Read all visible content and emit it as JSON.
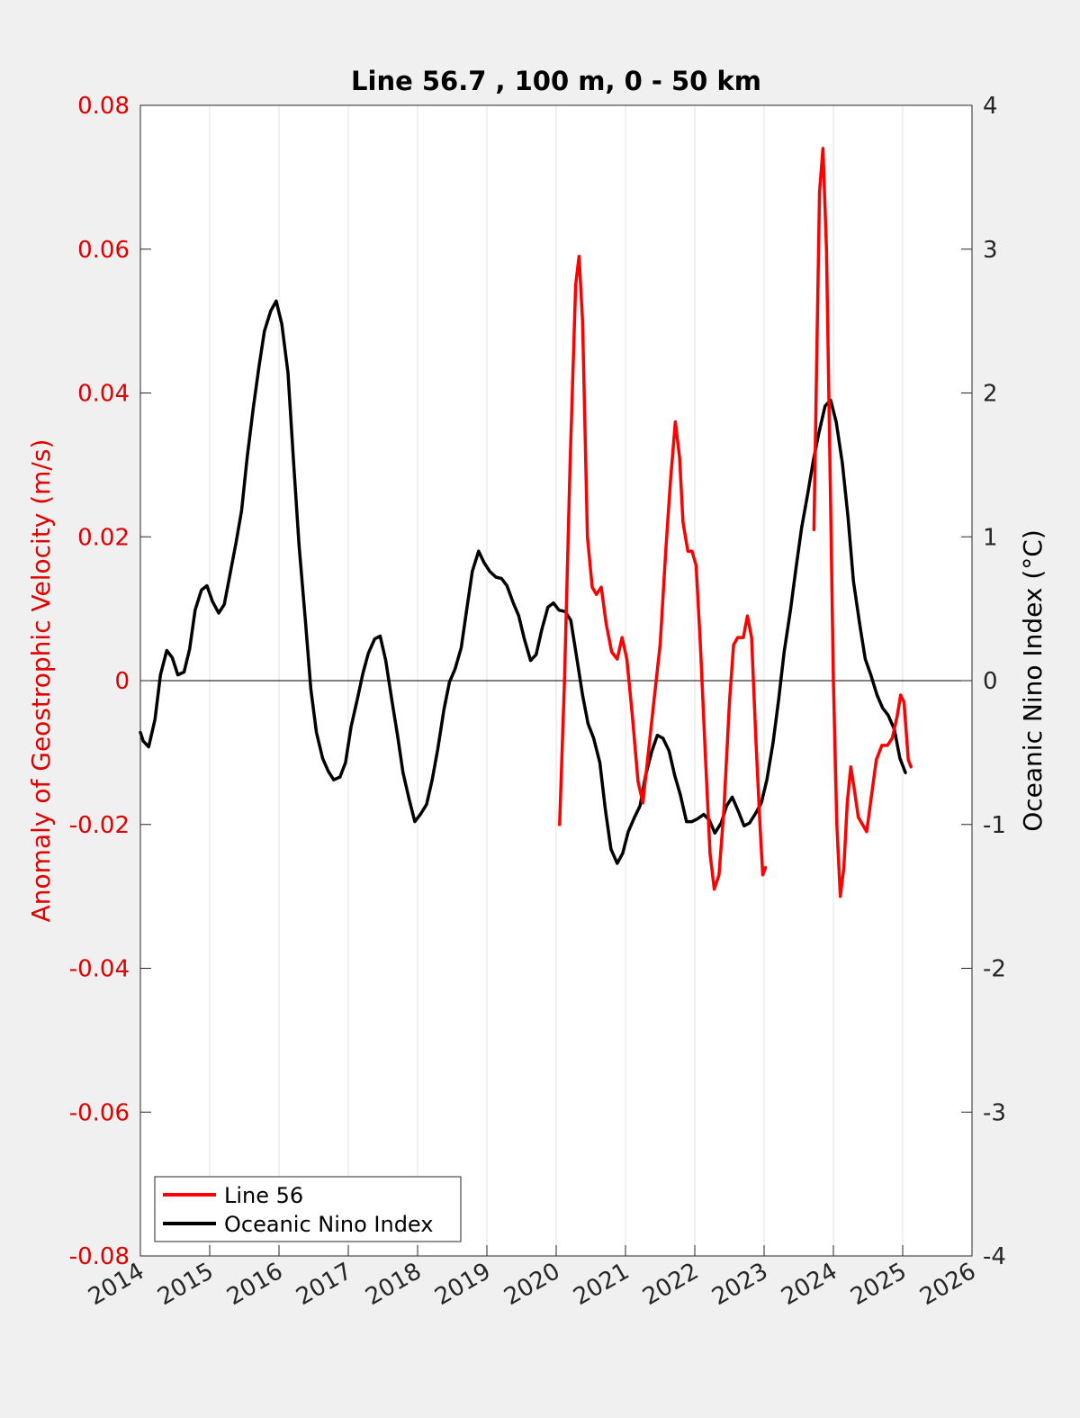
{
  "chart_data": {
    "type": "line",
    "title": "Line 56.7 , 100 m, 0 - 50 km",
    "xlabel": "",
    "ylabel_left": "Anomaly of Geostrophic Velocity (m/s)",
    "ylabel_right": "Oceanic Nino Index (°C)",
    "xlim": [
      2014,
      2026
    ],
    "ylim_left": [
      -0.08,
      0.08
    ],
    "ylim_right": [
      -4,
      4
    ],
    "x_ticks": [
      "2014",
      "2015",
      "2016",
      "2017",
      "2018",
      "2019",
      "2020",
      "2021",
      "2022",
      "2023",
      "2024",
      "2025",
      "2026"
    ],
    "y_ticks_left": [
      "-0.08",
      "-0.06",
      "-0.04",
      "-0.02",
      "0",
      "0.02",
      "0.04",
      "0.06",
      "0.08"
    ],
    "y_ticks_right": [
      "-4",
      "-3",
      "-2",
      "-1",
      "0",
      "1",
      "2",
      "3",
      "4"
    ],
    "grid": "vertical",
    "zero_line": true,
    "legend_position": "bottom-left",
    "colors": {
      "left_axis": "#e00000",
      "line56": "#ff0000",
      "oni": "#000000"
    },
    "series": [
      {
        "name": "Line 56",
        "axis": "left",
        "segments": [
          [
            [
              2020.05,
              -0.02
            ],
            [
              2020.12,
              0.0
            ],
            [
              2020.2,
              0.03
            ],
            [
              2020.28,
              0.055
            ],
            [
              2020.33,
              0.059
            ],
            [
              2020.38,
              0.05
            ],
            [
              2020.45,
              0.02
            ],
            [
              2020.52,
              0.013
            ],
            [
              2020.58,
              0.012
            ],
            [
              2020.65,
              0.013
            ],
            [
              2020.72,
              0.008
            ],
            [
              2020.8,
              0.004
            ],
            [
              2020.88,
              0.003
            ],
            [
              2020.95,
              0.006
            ],
            [
              2021.02,
              0.003
            ],
            [
              2021.1,
              -0.005
            ],
            [
              2021.18,
              -0.014
            ],
            [
              2021.25,
              -0.017
            ],
            [
              2021.33,
              -0.01
            ],
            [
              2021.42,
              -0.002
            ],
            [
              2021.5,
              0.005
            ],
            [
              2021.58,
              0.018
            ],
            [
              2021.65,
              0.028
            ],
            [
              2021.72,
              0.036
            ],
            [
              2021.78,
              0.031
            ],
            [
              2021.83,
              0.022
            ],
            [
              2021.9,
              0.018
            ],
            [
              2021.96,
              0.018
            ],
            [
              2022.02,
              0.016
            ],
            [
              2022.08,
              0.005
            ],
            [
              2022.15,
              -0.01
            ],
            [
              2022.22,
              -0.024
            ],
            [
              2022.28,
              -0.029
            ],
            [
              2022.35,
              -0.027
            ],
            [
              2022.42,
              -0.018
            ],
            [
              2022.5,
              -0.003
            ],
            [
              2022.56,
              0.005
            ],
            [
              2022.62,
              0.006
            ],
            [
              2022.7,
              0.006
            ],
            [
              2022.76,
              0.009
            ],
            [
              2022.82,
              0.006
            ],
            [
              2022.88,
              -0.008
            ],
            [
              2022.94,
              -0.02
            ],
            [
              2022.98,
              -0.027
            ],
            [
              2023.02,
              -0.026
            ]
          ],
          [
            [
              2023.72,
              0.021
            ],
            [
              2023.76,
              0.045
            ],
            [
              2023.8,
              0.068
            ],
            [
              2023.85,
              0.074
            ],
            [
              2023.9,
              0.06
            ],
            [
              2023.95,
              0.03
            ],
            [
              2024.0,
              0.0
            ],
            [
              2024.05,
              -0.02
            ],
            [
              2024.1,
              -0.03
            ],
            [
              2024.15,
              -0.026
            ],
            [
              2024.2,
              -0.017
            ],
            [
              2024.25,
              -0.012
            ],
            [
              2024.3,
              -0.015
            ],
            [
              2024.36,
              -0.019
            ],
            [
              2024.42,
              -0.02
            ],
            [
              2024.48,
              -0.021
            ],
            [
              2024.55,
              -0.016
            ],
            [
              2024.62,
              -0.011
            ],
            [
              2024.7,
              -0.009
            ],
            [
              2024.78,
              -0.009
            ],
            [
              2024.85,
              -0.008
            ],
            [
              2024.92,
              -0.005
            ],
            [
              2024.97,
              -0.002
            ],
            [
              2025.02,
              -0.003
            ],
            [
              2025.08,
              -0.011
            ],
            [
              2025.12,
              -0.012
            ]
          ]
        ]
      },
      {
        "name": "Oceanic Nino Index",
        "axis": "right",
        "points": [
          [
            2014.0,
            -0.36
          ],
          [
            2014.04,
            -0.42
          ],
          [
            2014.12,
            -0.46
          ],
          [
            2014.21,
            -0.27
          ],
          [
            2014.29,
            0.04
          ],
          [
            2014.38,
            0.21
          ],
          [
            2014.46,
            0.16
          ],
          [
            2014.54,
            0.04
          ],
          [
            2014.63,
            0.06
          ],
          [
            2014.71,
            0.22
          ],
          [
            2014.79,
            0.49
          ],
          [
            2014.88,
            0.63
          ],
          [
            2014.96,
            0.66
          ],
          [
            2015.04,
            0.55
          ],
          [
            2015.13,
            0.47
          ],
          [
            2015.21,
            0.53
          ],
          [
            2015.29,
            0.73
          ],
          [
            2015.38,
            0.96
          ],
          [
            2015.46,
            1.18
          ],
          [
            2015.54,
            1.55
          ],
          [
            2015.63,
            1.9
          ],
          [
            2015.71,
            2.18
          ],
          [
            2015.79,
            2.43
          ],
          [
            2015.88,
            2.57
          ],
          [
            2015.96,
            2.64
          ],
          [
            2016.04,
            2.48
          ],
          [
            2016.13,
            2.14
          ],
          [
            2016.21,
            1.52
          ],
          [
            2016.29,
            0.94
          ],
          [
            2016.38,
            0.42
          ],
          [
            2016.46,
            -0.06
          ],
          [
            2016.54,
            -0.36
          ],
          [
            2016.63,
            -0.54
          ],
          [
            2016.71,
            -0.63
          ],
          [
            2016.79,
            -0.69
          ],
          [
            2016.88,
            -0.67
          ],
          [
            2016.96,
            -0.57
          ],
          [
            2017.04,
            -0.32
          ],
          [
            2017.13,
            -0.13
          ],
          [
            2017.21,
            0.05
          ],
          [
            2017.29,
            0.19
          ],
          [
            2017.38,
            0.29
          ],
          [
            2017.46,
            0.31
          ],
          [
            2017.54,
            0.14
          ],
          [
            2017.63,
            -0.14
          ],
          [
            2017.71,
            -0.38
          ],
          [
            2017.79,
            -0.64
          ],
          [
            2017.88,
            -0.83
          ],
          [
            2017.96,
            -0.98
          ],
          [
            2018.04,
            -0.93
          ],
          [
            2018.13,
            -0.86
          ],
          [
            2018.21,
            -0.69
          ],
          [
            2018.29,
            -0.48
          ],
          [
            2018.38,
            -0.2
          ],
          [
            2018.46,
            -0.01
          ],
          [
            2018.54,
            0.08
          ],
          [
            2018.63,
            0.23
          ],
          [
            2018.71,
            0.5
          ],
          [
            2018.79,
            0.76
          ],
          [
            2018.88,
            0.9
          ],
          [
            2018.96,
            0.82
          ],
          [
            2019.04,
            0.76
          ],
          [
            2019.13,
            0.72
          ],
          [
            2019.21,
            0.71
          ],
          [
            2019.29,
            0.66
          ],
          [
            2019.38,
            0.54
          ],
          [
            2019.46,
            0.45
          ],
          [
            2019.54,
            0.29
          ],
          [
            2019.63,
            0.14
          ],
          [
            2019.71,
            0.18
          ],
          [
            2019.79,
            0.35
          ],
          [
            2019.88,
            0.51
          ],
          [
            2019.96,
            0.54
          ],
          [
            2020.04,
            0.49
          ],
          [
            2020.13,
            0.48
          ],
          [
            2020.21,
            0.42
          ],
          [
            2020.29,
            0.18
          ],
          [
            2020.38,
            -0.1
          ],
          [
            2020.46,
            -0.3
          ],
          [
            2020.54,
            -0.4
          ],
          [
            2020.63,
            -0.57
          ],
          [
            2020.71,
            -0.9
          ],
          [
            2020.79,
            -1.17
          ],
          [
            2020.88,
            -1.27
          ],
          [
            2020.96,
            -1.2
          ],
          [
            2021.04,
            -1.05
          ],
          [
            2021.13,
            -0.95
          ],
          [
            2021.21,
            -0.87
          ],
          [
            2021.29,
            -0.66
          ],
          [
            2021.38,
            -0.49
          ],
          [
            2021.46,
            -0.38
          ],
          [
            2021.54,
            -0.4
          ],
          [
            2021.63,
            -0.49
          ],
          [
            2021.71,
            -0.66
          ],
          [
            2021.79,
            -0.79
          ],
          [
            2021.88,
            -0.98
          ],
          [
            2021.96,
            -0.98
          ],
          [
            2022.04,
            -0.96
          ],
          [
            2022.13,
            -0.93
          ],
          [
            2022.21,
            -0.97
          ],
          [
            2022.29,
            -1.06
          ],
          [
            2022.38,
            -0.99
          ],
          [
            2022.46,
            -0.87
          ],
          [
            2022.54,
            -0.81
          ],
          [
            2022.63,
            -0.91
          ],
          [
            2022.71,
            -1.01
          ],
          [
            2022.79,
            -0.99
          ],
          [
            2022.88,
            -0.92
          ],
          [
            2022.96,
            -0.85
          ],
          [
            2023.04,
            -0.69
          ],
          [
            2023.13,
            -0.43
          ],
          [
            2023.21,
            -0.13
          ],
          [
            2023.29,
            0.2
          ],
          [
            2023.38,
            0.49
          ],
          [
            2023.46,
            0.78
          ],
          [
            2023.54,
            1.06
          ],
          [
            2023.63,
            1.3
          ],
          [
            2023.71,
            1.53
          ],
          [
            2023.79,
            1.72
          ],
          [
            2023.88,
            1.91
          ],
          [
            2023.96,
            1.95
          ],
          [
            2024.04,
            1.8
          ],
          [
            2024.13,
            1.51
          ],
          [
            2024.21,
            1.14
          ],
          [
            2024.29,
            0.69
          ],
          [
            2024.38,
            0.39
          ],
          [
            2024.46,
            0.15
          ],
          [
            2024.54,
            0.04
          ],
          [
            2024.63,
            -0.1
          ],
          [
            2024.71,
            -0.19
          ],
          [
            2024.79,
            -0.24
          ],
          [
            2024.88,
            -0.34
          ],
          [
            2024.96,
            -0.54
          ],
          [
            2025.04,
            -0.64
          ]
        ]
      }
    ]
  }
}
